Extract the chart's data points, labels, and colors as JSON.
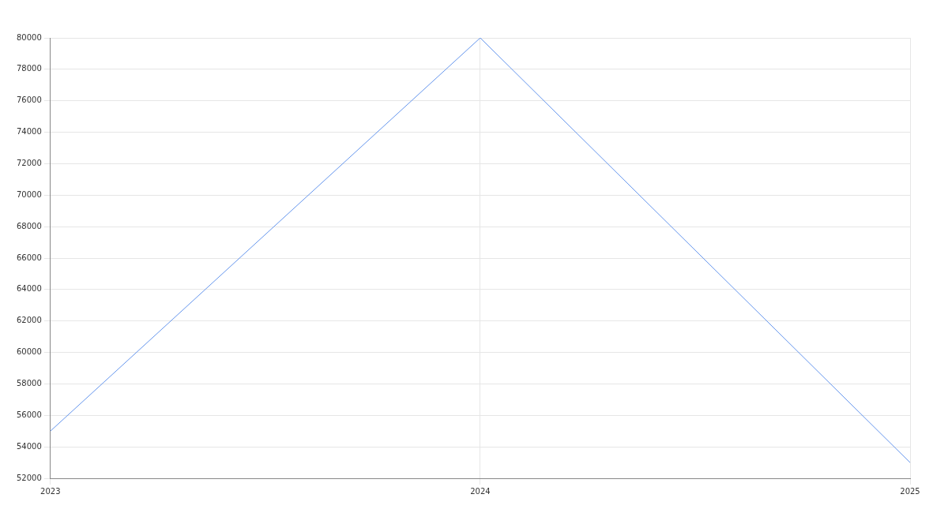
{
  "chart_data": {
    "type": "line",
    "categories": [
      "2023",
      "2024",
      "2025"
    ],
    "series": [
      {
        "color": "#6495ed",
        "values": [
          55000,
          80000,
          53000
        ]
      }
    ],
    "ylim": [
      52000,
      80000
    ],
    "yticks": [
      52000,
      54000,
      56000,
      58000,
      60000,
      62000,
      64000,
      66000,
      68000,
      70000,
      72000,
      74000,
      76000,
      78000,
      80000
    ],
    "grid": true,
    "legend": false,
    "marker": "none",
    "line_style": "solid"
  }
}
